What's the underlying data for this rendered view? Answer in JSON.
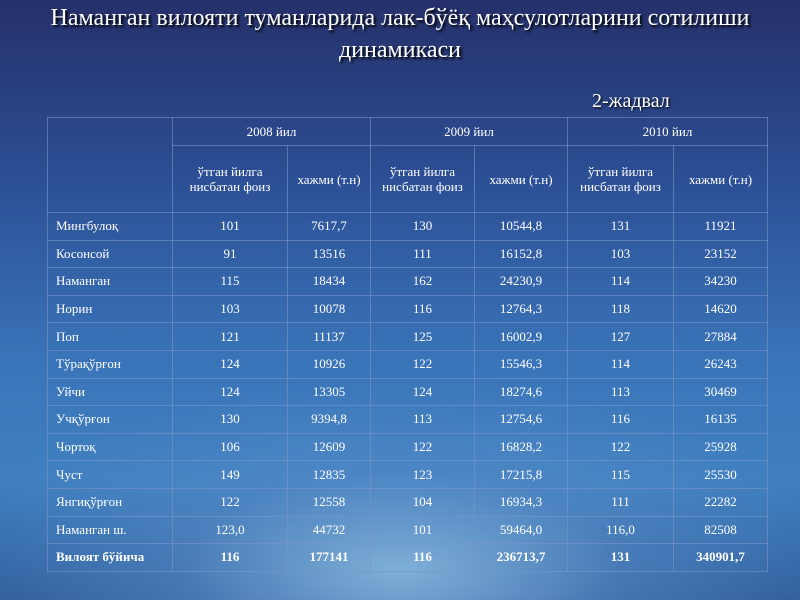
{
  "header": {
    "title": "Наманган вилояти туманларида лак-бўёқ маҳсулотларини сотилиши динамикаси",
    "table_label": "2-жадвал"
  },
  "table": {
    "years": [
      "2008 йил",
      "2009 йил",
      "2010 йил"
    ],
    "subheaders": [
      "ўтган йилга нисбатан фоиз",
      "хажми (т.н)",
      "ўтган йилга нисбатан фоиз",
      "хажми (т.н)",
      "ўтган йилга нисбатан фоиз",
      "хажми (т.н)"
    ],
    "rows": [
      [
        "Мингбулоқ",
        "101",
        "7617,7",
        "130",
        "10544,8",
        "131",
        "11921"
      ],
      [
        "Косонсой",
        "91",
        "13516",
        "111",
        "16152,8",
        "103",
        "23152"
      ],
      [
        "Наманган",
        "115",
        "18434",
        "162",
        "24230,9",
        "114",
        "34230"
      ],
      [
        "Норин",
        "103",
        "10078",
        "116",
        "12764,3",
        "118",
        "14620"
      ],
      [
        "Поп",
        "121",
        "11137",
        "125",
        "16002,9",
        "127",
        "27884"
      ],
      [
        "Тўрақўрғон",
        "124",
        "10926",
        "122",
        "15546,3",
        "114",
        "26243"
      ],
      [
        "Уйчи",
        "124",
        "13305",
        "124",
        "18274,6",
        "113",
        "30469"
      ],
      [
        "Учқўрғон",
        "130",
        "9394,8",
        "113",
        "12754,6",
        "116",
        "16135"
      ],
      [
        "Чортоқ",
        "106",
        "12609",
        "122",
        "16828,2",
        "122",
        "25928"
      ],
      [
        "Чуст",
        "149",
        "12835",
        "123",
        "17215,8",
        "115",
        "25530"
      ],
      [
        "Янгиқўрғон",
        "122",
        "12558",
        "104",
        "16934,3",
        "111",
        "22282"
      ],
      [
        "Наманган ш.",
        "123,0",
        "44732",
        "101",
        "59464,0",
        "116,0",
        "82508"
      ],
      [
        "Вилоят бўйича",
        "116",
        "177141",
        "116",
        "236713,7",
        "131",
        "340901,7"
      ]
    ]
  }
}
